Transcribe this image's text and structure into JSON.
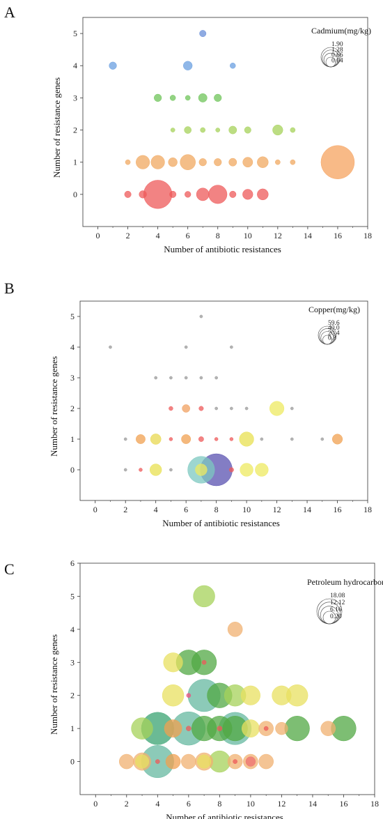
{
  "chart_data": [
    {
      "type": "scatter",
      "panel": "A",
      "xlabel": "Number of antibiotic resistances",
      "ylabel": "Number of resistance genes",
      "xlim": [
        -1,
        18
      ],
      "ylim": [
        -1,
        5.5
      ],
      "xticks": [
        "0",
        "2",
        "4",
        "6",
        "8",
        "10",
        "12",
        "14",
        "16",
        "18"
      ],
      "yticks": [
        "0",
        "1",
        "2",
        "3",
        "4",
        "5"
      ],
      "legend": {
        "title": "Cadmium(mg/kg)",
        "values": [
          "1.90",
          "1.28",
          "0.66",
          "0.04"
        ],
        "placement": "top-right"
      },
      "points": [
        {
          "x": 7,
          "y": 5,
          "size": 0.07,
          "color": "#6a8fd8"
        },
        {
          "x": 1,
          "y": 4,
          "size": 0.09,
          "color": "#6a9fe0"
        },
        {
          "x": 6,
          "y": 4,
          "size": 0.13,
          "color": "#6a9fe0"
        },
        {
          "x": 9,
          "y": 4,
          "size": 0.05,
          "color": "#6a9fe0"
        },
        {
          "x": 4,
          "y": 3,
          "size": 0.09,
          "color": "#6fc45a"
        },
        {
          "x": 5,
          "y": 3,
          "size": 0.05,
          "color": "#6fc45a"
        },
        {
          "x": 6,
          "y": 3,
          "size": 0.04,
          "color": "#6fc45a"
        },
        {
          "x": 7,
          "y": 3,
          "size": 0.12,
          "color": "#6fc45a"
        },
        {
          "x": 8,
          "y": 3,
          "size": 0.09,
          "color": "#6fc45a"
        },
        {
          "x": 5,
          "y": 2,
          "size": 0.03,
          "color": "#a6d25a"
        },
        {
          "x": 6,
          "y": 2,
          "size": 0.08,
          "color": "#a6d25a"
        },
        {
          "x": 7,
          "y": 2,
          "size": 0.04,
          "color": "#a6d25a"
        },
        {
          "x": 8,
          "y": 2,
          "size": 0.03,
          "color": "#a6d25a"
        },
        {
          "x": 9,
          "y": 2,
          "size": 0.1,
          "color": "#a6d25a"
        },
        {
          "x": 10,
          "y": 2,
          "size": 0.07,
          "color": "#a6d25a"
        },
        {
          "x": 12,
          "y": 2,
          "size": 0.17,
          "color": "#a6d25a"
        },
        {
          "x": 13,
          "y": 2,
          "size": 0.04,
          "color": "#a6d25a"
        },
        {
          "x": 2,
          "y": 1,
          "size": 0.04,
          "color": "#f0a860"
        },
        {
          "x": 3,
          "y": 1,
          "size": 0.3,
          "color": "#f0a860"
        },
        {
          "x": 4,
          "y": 1,
          "size": 0.3,
          "color": "#f0a860"
        },
        {
          "x": 5,
          "y": 1,
          "size": 0.13,
          "color": "#f0a860"
        },
        {
          "x": 6,
          "y": 1,
          "size": 0.38,
          "color": "#f0a860"
        },
        {
          "x": 7,
          "y": 1,
          "size": 0.09,
          "color": "#f0a860"
        },
        {
          "x": 8,
          "y": 1,
          "size": 0.09,
          "color": "#f0a860"
        },
        {
          "x": 9,
          "y": 1,
          "size": 0.1,
          "color": "#f0a860"
        },
        {
          "x": 10,
          "y": 1,
          "size": 0.16,
          "color": "#f0a860"
        },
        {
          "x": 11,
          "y": 1,
          "size": 0.2,
          "color": "#f0a860"
        },
        {
          "x": 12,
          "y": 1,
          "size": 0.04,
          "color": "#f0a860"
        },
        {
          "x": 13,
          "y": 1,
          "size": 0.04,
          "color": "#f0a860"
        },
        {
          "x": 16,
          "y": 1,
          "size": 1.8,
          "color": "#f6a35f"
        },
        {
          "x": 2,
          "y": 0,
          "size": 0.07,
          "color": "#ee5a5a"
        },
        {
          "x": 3,
          "y": 0,
          "size": 0.09,
          "color": "#ee5a5a"
        },
        {
          "x": 4,
          "y": 0,
          "size": 1.3,
          "color": "#ee5a5a"
        },
        {
          "x": 5,
          "y": 0,
          "size": 0.07,
          "color": "#ee5a5a"
        },
        {
          "x": 6,
          "y": 0,
          "size": 0.06,
          "color": "#ee5a5a"
        },
        {
          "x": 7,
          "y": 0,
          "size": 0.26,
          "color": "#ee5a5a"
        },
        {
          "x": 8,
          "y": 0,
          "size": 0.55,
          "color": "#ee5a5a"
        },
        {
          "x": 9,
          "y": 0,
          "size": 0.07,
          "color": "#ee5a5a"
        },
        {
          "x": 10,
          "y": 0,
          "size": 0.17,
          "color": "#ee5a5a"
        },
        {
          "x": 11,
          "y": 0,
          "size": 0.2,
          "color": "#ee5a5a"
        }
      ]
    },
    {
      "type": "scatter",
      "panel": "B",
      "xlabel": "Number of antibiotic resistances",
      "ylabel": "Number of resistance genes",
      "xlim": [
        -1,
        18
      ],
      "ylim": [
        -1,
        5.5
      ],
      "xticks": [
        "0",
        "2",
        "4",
        "6",
        "8",
        "10",
        "12",
        "14",
        "16",
        "18"
      ],
      "yticks": [
        "0",
        "1",
        "2",
        "3",
        "4",
        "5"
      ],
      "legend": {
        "title": "Copper(mg/kg)",
        "values": [
          "59.6",
          "40.0",
          "20.4",
          "0.8"
        ],
        "placement": "top-right"
      },
      "points": [
        {
          "x": 7,
          "y": 5,
          "size": 0.5,
          "color": "#999999"
        },
        {
          "x": 1,
          "y": 4,
          "size": 0.5,
          "color": "#999999"
        },
        {
          "x": 6,
          "y": 4,
          "size": 0.5,
          "color": "#999999"
        },
        {
          "x": 9,
          "y": 4,
          "size": 0.5,
          "color": "#999999"
        },
        {
          "x": 4,
          "y": 3,
          "size": 0.5,
          "color": "#999999"
        },
        {
          "x": 5,
          "y": 3,
          "size": 0.5,
          "color": "#999999"
        },
        {
          "x": 6,
          "y": 3,
          "size": 0.5,
          "color": "#999999"
        },
        {
          "x": 7,
          "y": 3,
          "size": 0.5,
          "color": "#999999"
        },
        {
          "x": 8,
          "y": 3,
          "size": 0.5,
          "color": "#999999"
        },
        {
          "x": 5,
          "y": 2,
          "size": 1.0,
          "color": "#ee5a5a"
        },
        {
          "x": 6,
          "y": 2,
          "size": 3.5,
          "color": "#f0a060"
        },
        {
          "x": 7,
          "y": 2,
          "size": 1.2,
          "color": "#ee5a5a"
        },
        {
          "x": 8,
          "y": 2,
          "size": 0.5,
          "color": "#999999"
        },
        {
          "x": 9,
          "y": 2,
          "size": 0.5,
          "color": "#999999"
        },
        {
          "x": 10,
          "y": 2,
          "size": 0.5,
          "color": "#999999"
        },
        {
          "x": 12,
          "y": 2,
          "size": 12.0,
          "color": "#eeea60"
        },
        {
          "x": 13,
          "y": 2,
          "size": 0.5,
          "color": "#999999"
        },
        {
          "x": 2,
          "y": 1,
          "size": 0.5,
          "color": "#999999"
        },
        {
          "x": 3,
          "y": 1,
          "size": 5.0,
          "color": "#f0a050"
        },
        {
          "x": 4,
          "y": 1,
          "size": 6.5,
          "color": "#e8d850"
        },
        {
          "x": 5,
          "y": 1,
          "size": 0.7,
          "color": "#ee5a5a"
        },
        {
          "x": 6,
          "y": 1,
          "size": 5.0,
          "color": "#f0a050"
        },
        {
          "x": 7,
          "y": 1,
          "size": 1.5,
          "color": "#ee5a5a"
        },
        {
          "x": 8,
          "y": 1,
          "size": 0.7,
          "color": "#ee5a5a"
        },
        {
          "x": 9,
          "y": 1,
          "size": 0.7,
          "color": "#ee5a5a"
        },
        {
          "x": 10,
          "y": 1,
          "size": 12.0,
          "color": "#e8e050"
        },
        {
          "x": 11,
          "y": 1,
          "size": 0.5,
          "color": "#999999"
        },
        {
          "x": 13,
          "y": 1,
          "size": 0.5,
          "color": "#999999"
        },
        {
          "x": 15,
          "y": 1,
          "size": 0.5,
          "color": "#999999"
        },
        {
          "x": 16,
          "y": 1,
          "size": 6.0,
          "color": "#f0a050"
        },
        {
          "x": 2,
          "y": 0,
          "size": 0.5,
          "color": "#999999"
        },
        {
          "x": 3,
          "y": 0,
          "size": 0.7,
          "color": "#ee5a5a"
        },
        {
          "x": 4,
          "y": 0,
          "size": 8.0,
          "color": "#e8e050"
        },
        {
          "x": 5,
          "y": 0,
          "size": 0.5,
          "color": "#999999"
        },
        {
          "x": 7,
          "y": 0,
          "size": 42.0,
          "color": "#7cc8c0"
        },
        {
          "x": 7,
          "y": 0,
          "size": 8.0,
          "color": "#eeea60"
        },
        {
          "x": 8,
          "y": 0,
          "size": 59.6,
          "color": "#5a52b0"
        },
        {
          "x": 9,
          "y": 0,
          "size": 1.2,
          "color": "#ee5a5a"
        },
        {
          "x": 10,
          "y": 0,
          "size": 10.0,
          "color": "#eeea60"
        },
        {
          "x": 11,
          "y": 0,
          "size": 10.0,
          "color": "#eeea60"
        }
      ]
    },
    {
      "type": "scatter",
      "panel": "C",
      "xlabel": "Number of antibiotic resistances",
      "ylabel": "Number of resistance genes",
      "xlim": [
        -1,
        18
      ],
      "ylim": [
        -1,
        6
      ],
      "xticks": [
        "0",
        "2",
        "4",
        "6",
        "8",
        "10",
        "12",
        "14",
        "16",
        "18"
      ],
      "yticks": [
        "0",
        "1",
        "2",
        "3",
        "4",
        "5",
        "6"
      ],
      "legend": {
        "title": "Petroleum hydrocarbons(mg/kg)",
        "values": [
          "18.08",
          "12.12",
          "6.16",
          "0.20"
        ],
        "placement": "top-right"
      },
      "points": [
        {
          "x": 7,
          "y": 5,
          "size": 7.5,
          "color": "#a6d25a"
        },
        {
          "x": 9,
          "y": 4,
          "size": 3.5,
          "color": "#f0b070"
        },
        {
          "x": 5,
          "y": 3,
          "size": 6.0,
          "color": "#e8e060"
        },
        {
          "x": 6,
          "y": 3,
          "size": 10.0,
          "color": "#52a844"
        },
        {
          "x": 7,
          "y": 3,
          "size": 10.0,
          "color": "#52a844"
        },
        {
          "x": 7,
          "y": 3,
          "size": 0.3,
          "color": "#ee5a5a"
        },
        {
          "x": 5,
          "y": 2,
          "size": 7.5,
          "color": "#e8e060"
        },
        {
          "x": 6,
          "y": 2,
          "size": 0.3,
          "color": "#ee5080"
        },
        {
          "x": 7,
          "y": 2,
          "size": 17.0,
          "color": "#66b8a0"
        },
        {
          "x": 8,
          "y": 2,
          "size": 10.0,
          "color": "#52a844"
        },
        {
          "x": 9,
          "y": 2,
          "size": 7.5,
          "color": "#a6d25a"
        },
        {
          "x": 10,
          "y": 2,
          "size": 6.0,
          "color": "#e8e060"
        },
        {
          "x": 12,
          "y": 2,
          "size": 6.0,
          "color": "#e8e060"
        },
        {
          "x": 13,
          "y": 2,
          "size": 7.5,
          "color": "#e8e060"
        },
        {
          "x": 3,
          "y": 1,
          "size": 7.5,
          "color": "#a6d25a"
        },
        {
          "x": 4,
          "y": 1,
          "size": 17.0,
          "color": "#52a844"
        },
        {
          "x": 4,
          "y": 1,
          "size": 17.0,
          "color": "#66b8a0"
        },
        {
          "x": 5,
          "y": 1,
          "size": 5.0,
          "color": "#f0a050"
        },
        {
          "x": 6,
          "y": 1,
          "size": 18.08,
          "color": "#66b8a0"
        },
        {
          "x": 6,
          "y": 1,
          "size": 0.4,
          "color": "#ee5a5a"
        },
        {
          "x": 7,
          "y": 1,
          "size": 10.0,
          "color": "#52a844"
        },
        {
          "x": 8,
          "y": 1,
          "size": 10.0,
          "color": "#52a844"
        },
        {
          "x": 8,
          "y": 1,
          "size": 0.4,
          "color": "#ee5a5a"
        },
        {
          "x": 9,
          "y": 1,
          "size": 17.0,
          "color": "#66b8a0"
        },
        {
          "x": 9,
          "y": 1,
          "size": 10.0,
          "color": "#52a844"
        },
        {
          "x": 10,
          "y": 1,
          "size": 5.0,
          "color": "#e8e060"
        },
        {
          "x": 11,
          "y": 1,
          "size": 3.5,
          "color": "#f0b070"
        },
        {
          "x": 11,
          "y": 1,
          "size": 0.3,
          "color": "#ee5a5a"
        },
        {
          "x": 12,
          "y": 1,
          "size": 2.5,
          "color": "#f0b070"
        },
        {
          "x": 13,
          "y": 1,
          "size": 10.0,
          "color": "#52a844"
        },
        {
          "x": 15,
          "y": 1,
          "size": 3.5,
          "color": "#f0b070"
        },
        {
          "x": 16,
          "y": 1,
          "size": 10.0,
          "color": "#52a844"
        },
        {
          "x": 2,
          "y": 0,
          "size": 3.5,
          "color": "#f0b070"
        },
        {
          "x": 3,
          "y": 0,
          "size": 5.0,
          "color": "#f0b070"
        },
        {
          "x": 3,
          "y": 0,
          "size": 3.0,
          "color": "#e8e060"
        },
        {
          "x": 4,
          "y": 0,
          "size": 17.0,
          "color": "#66b8a0"
        },
        {
          "x": 4,
          "y": 0,
          "size": 0.3,
          "color": "#ee5a5a"
        },
        {
          "x": 5,
          "y": 0,
          "size": 3.5,
          "color": "#f0a050"
        },
        {
          "x": 6,
          "y": 0,
          "size": 3.5,
          "color": "#f0b070"
        },
        {
          "x": 7,
          "y": 0,
          "size": 5.0,
          "color": "#f0b070"
        },
        {
          "x": 7,
          "y": 0,
          "size": 3.0,
          "color": "#e8e060"
        },
        {
          "x": 8,
          "y": 0,
          "size": 7.5,
          "color": "#a6d25a"
        },
        {
          "x": 9,
          "y": 0,
          "size": 3.5,
          "color": "#f0b070"
        },
        {
          "x": 9,
          "y": 0,
          "size": 0.3,
          "color": "#ee5a5a"
        },
        {
          "x": 10,
          "y": 0,
          "size": 3.5,
          "color": "#f0b070"
        },
        {
          "x": 10,
          "y": 0,
          "size": 1.5,
          "color": "#ee7070"
        },
        {
          "x": 11,
          "y": 0,
          "size": 3.5,
          "color": "#f0b070"
        }
      ]
    }
  ]
}
